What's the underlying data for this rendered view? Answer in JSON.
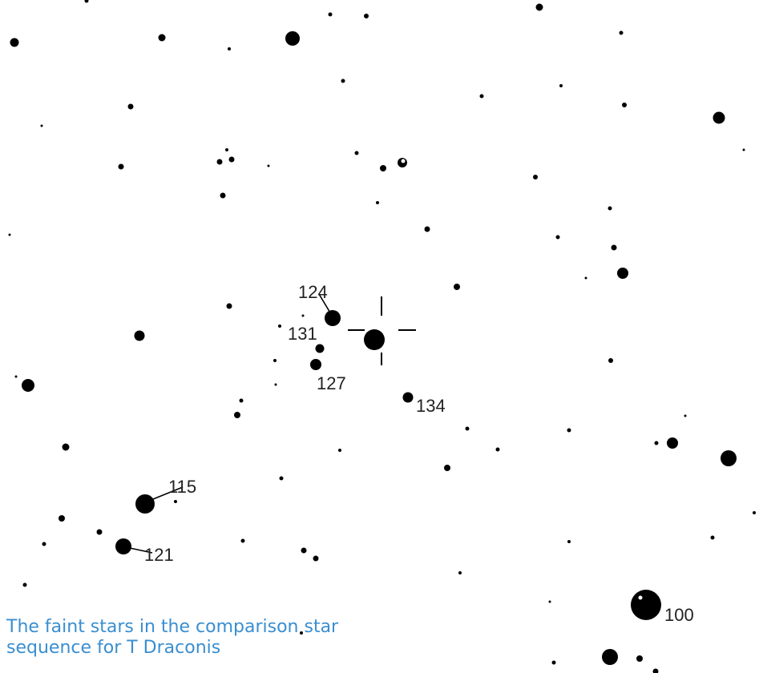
{
  "caption": {
    "line1": "The faint stars in the comparison star",
    "line2": "sequence for T Draconis"
  },
  "labels": [
    "124",
    "131",
    "127",
    "134",
    "115",
    "121",
    "100"
  ],
  "colors": {
    "star": "#000000",
    "text": "#222222",
    "caption": "#3a8ed0"
  }
}
